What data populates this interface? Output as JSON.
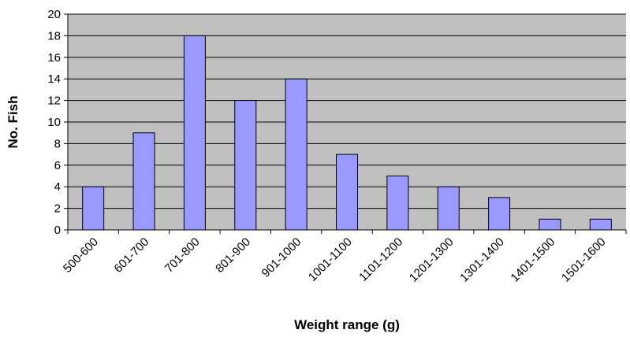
{
  "chart_data": {
    "type": "bar",
    "title": "",
    "xlabel": "Weight range (g)",
    "ylabel": "No. Fish",
    "categories": [
      "500-600",
      "601-700",
      "701-800",
      "801-900",
      "901-1000",
      "1001-1100",
      "1101-1200",
      "1201-1300",
      "1301-1400",
      "1401-1500",
      "1501-1600"
    ],
    "values": [
      4,
      9,
      18,
      12,
      14,
      7,
      5,
      4,
      3,
      1,
      1
    ],
    "ylim": [
      0,
      20
    ],
    "yticks": [
      0,
      2,
      4,
      6,
      8,
      10,
      12,
      14,
      16,
      18,
      20
    ],
    "grid": true,
    "legend": "none",
    "colors": {
      "plot_background": "#c0c0c0",
      "bar_fill": "#9999ff",
      "bar_stroke": "#000000",
      "gridline": "#000000"
    }
  }
}
